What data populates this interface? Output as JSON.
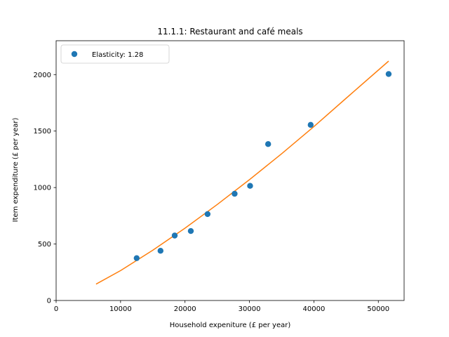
{
  "chart_data": {
    "type": "scatter",
    "title": "11.1.1: Restaurant and café meals",
    "xlabel": "Household expeniture (£ per year)",
    "ylabel": "Item expenditure (£ per year)",
    "xlim": [
      0,
      54000
    ],
    "ylim": [
      0,
      2300
    ],
    "xticks": [
      0,
      10000,
      20000,
      30000,
      40000,
      50000
    ],
    "yticks": [
      0,
      500,
      1000,
      1500,
      2000
    ],
    "grid": false,
    "legend_position": "top-left",
    "series": [
      {
        "name": "Elasticity: 1.28",
        "kind": "scatter",
        "color": "#1f77b4",
        "x": [
          12500,
          16200,
          18400,
          20900,
          23500,
          27700,
          30100,
          32900,
          39500,
          51600
        ],
        "y": [
          375,
          440,
          575,
          615,
          765,
          945,
          1015,
          1385,
          1555,
          2005
        ]
      },
      {
        "kind": "line",
        "color": "#ff7f0e",
        "x": [
          6200,
          10000,
          15000,
          20000,
          25000,
          30000,
          35000,
          40000,
          45000,
          51600
        ],
        "y": [
          145,
          265,
          445,
          640,
          850,
          1070,
          1300,
          1540,
          1790,
          2120
        ]
      }
    ]
  }
}
